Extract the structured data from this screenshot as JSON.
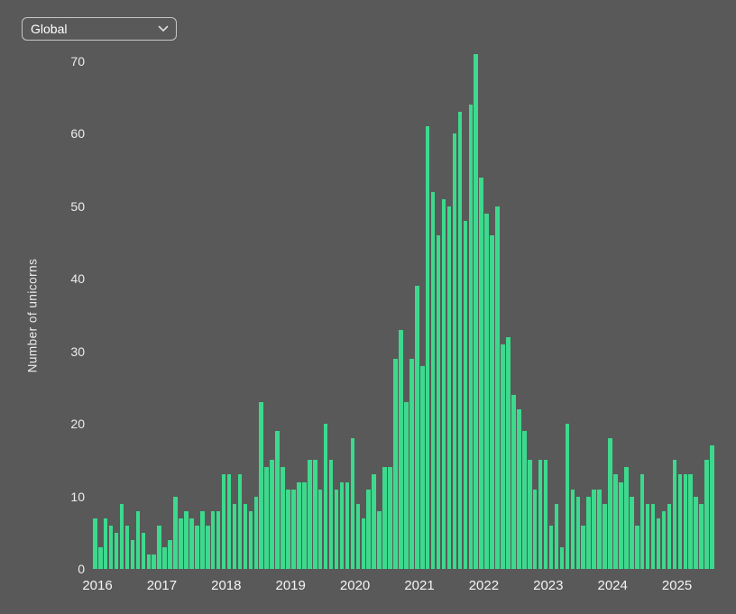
{
  "controls": {
    "region_dropdown": {
      "selected": "Global"
    }
  },
  "chart_data": {
    "type": "bar",
    "title": "",
    "ylabel": "Number of unicorns",
    "xlabel": "",
    "x_unit": "month",
    "grid": false,
    "legend": "none",
    "ylim": [
      0,
      71
    ],
    "yticks": [
      0,
      10,
      20,
      30,
      40,
      50,
      60,
      70
    ],
    "bar_color": "#3dd98d",
    "background_color": "#595959",
    "text_color": "#ededed",
    "years": [
      {
        "label": "2016",
        "values": [
          7,
          3,
          7,
          6,
          5,
          9,
          6,
          4,
          8,
          5,
          2,
          2
        ]
      },
      {
        "label": "2017",
        "values": [
          6,
          3,
          4,
          10,
          7,
          8,
          7,
          6,
          8,
          6,
          8,
          8
        ]
      },
      {
        "label": "2018",
        "values": [
          13,
          13,
          9,
          13,
          9,
          8,
          10,
          23,
          14,
          15,
          19,
          14
        ]
      },
      {
        "label": "2019",
        "values": [
          11,
          11,
          12,
          12,
          15,
          15,
          11,
          20,
          15,
          11,
          12,
          12
        ]
      },
      {
        "label": "2020",
        "values": [
          18,
          9,
          7,
          11,
          13,
          8,
          14,
          14,
          29,
          33,
          23,
          29
        ]
      },
      {
        "label": "2021",
        "values": [
          39,
          28,
          61,
          52,
          46,
          51,
          50,
          60,
          63,
          48,
          64,
          71
        ]
      },
      {
        "label": "2022",
        "values": [
          54,
          49,
          46,
          50,
          31,
          32,
          24,
          22,
          19,
          15,
          11,
          15
        ]
      },
      {
        "label": "2023",
        "values": [
          15,
          6,
          9,
          3,
          20,
          11,
          10,
          6,
          10,
          11,
          11,
          9
        ]
      },
      {
        "label": "2024",
        "values": [
          18,
          13,
          12,
          14,
          10,
          6,
          13,
          9,
          9,
          7,
          8,
          9
        ]
      },
      {
        "label": "2025",
        "values": [
          15,
          13,
          13,
          13,
          10,
          9,
          15,
          17
        ]
      }
    ]
  }
}
